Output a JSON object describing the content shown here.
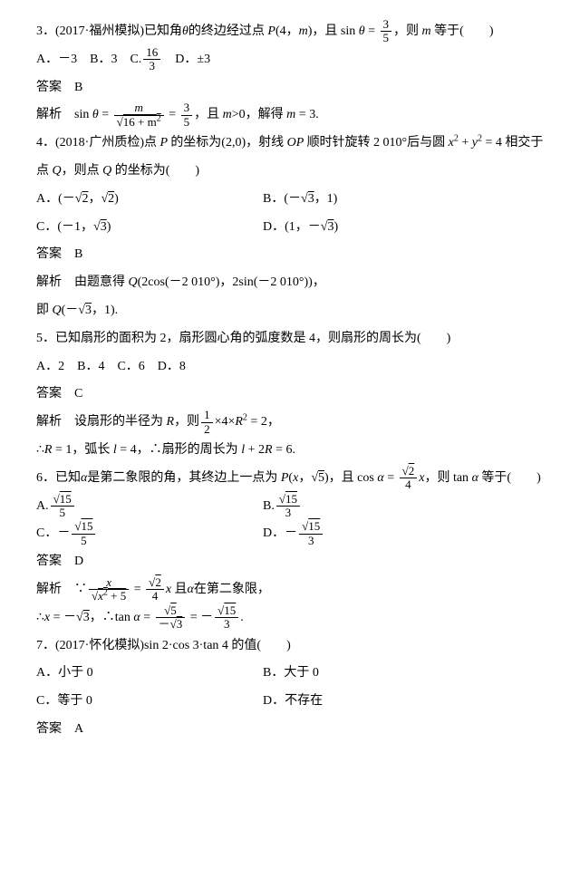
{
  "q3": {
    "stem_a": "3．(2017·福州模拟)已知角",
    "stem_b": "的终边经过点 ",
    "point": "P",
    "args": "(4，",
    "m": "m",
    "stem_c": ")，且 sin ",
    "eq": " = ",
    "f_num": "3",
    "f_den": "5",
    "stem_d": "，则 ",
    "stem_e": " 等于(　　)",
    "opts": "A．－3　B．3　C.",
    "c_num": "16",
    "c_den": "3",
    "optd": "　D．±3",
    "ans_label": "答案　B",
    "exp_a": "解析　sin ",
    "exp_eq": " = ",
    "exp_num": "m",
    "exp_den": "16 + m",
    "exp_b": " = ",
    "exp_c": "，且 ",
    "exp_d": ">0，解得 ",
    "exp_e": " = 3."
  },
  "q4": {
    "stem_a": "4．(2018·广州质检)点 ",
    "P": "P ",
    "stem_b": "的坐标为(2,0)，射线 ",
    "OP": "OP ",
    "stem_c": "顺时针旋转 2 010°后与圆 ",
    "eq": "x",
    "plus": " + ",
    "y": "y",
    "eq2": " = 4 相交于",
    "stem_d": "点 ",
    "Q": "Q",
    "stem_e": "，则点 ",
    "stem_f": " 的坐标为(　　)",
    "a": "A．(－",
    "a2": "2",
    "a3": "，",
    "a4": "2",
    "a5": ")",
    "b": "B．(－",
    "b2": "3",
    "b3": "，1)",
    "c": "C．(－1，",
    "c2": "3",
    "c3": ")",
    "d": "D．(1，－",
    "d2": "3",
    "d3": ")",
    "ans": "答案　B",
    "exp1": "解析　由题意得 ",
    "exp2": "(2cos(－2 010°)，2sin(－2 010°))，",
    "exp3": "即 ",
    "exp4": "(－",
    "exp5": "3",
    "exp6": "，1)."
  },
  "q5": {
    "stem": "5．已知扇形的面积为 2，扇形圆心角的弧度数是 4，则扇形的周长为(　　)",
    "opts": "A．2　B．4　C．6　D．8",
    "ans": "答案　C",
    "exp1": "解析　设扇形的半径为 ",
    "R": "R",
    "exp2": "，则",
    "half_n": "1",
    "half_d": "2",
    "exp3": "×4×",
    "exp4": " = 2，",
    "exp5": "∴",
    "exp6": " = 1，弧长 ",
    "l": "l",
    "exp7": " = 4，∴扇形的周长为 ",
    "exp8": " + 2",
    "exp9": " = 6."
  },
  "q6": {
    "stem_a": "6．已知",
    "alpha": "α",
    "stem_b": "是第二象限的角，其终边上一点为 ",
    "P": "P",
    "stem_c": "(",
    "x": "x",
    "stem_d": "，",
    "five": "5",
    "stem_e": ")，且 cos ",
    "eq": " = ",
    "f_num": "2",
    "f_den": "4",
    "stem_f": "，则 tan ",
    "stem_g": " 等于(　　)",
    "a": "A.",
    "ab_num": "15",
    "a_den": "5",
    "b": "B.",
    "b_den": "3",
    "c": "C．－",
    "c_den": "5",
    "d": "D．－",
    "d_den": "3",
    "ans": "答案　D",
    "exp1": "解析　∵",
    "exp_num": "x",
    "exp_den1": "x",
    "exp_den2": " + 5",
    "exp2": " = ",
    "exp3": " 且",
    "exp4": "在第二象限，",
    "exp5": "∴",
    "exp6": " = －",
    "three": "3",
    "exp7": "，∴tan ",
    "exp8": " = ",
    "t_num": "5",
    "t_den": "3",
    "exp9": " = －",
    "r_num": "15",
    "r_den": "3",
    "exp10": "."
  },
  "q7": {
    "stem": "7．(2017·怀化模拟)sin 2·cos 3·tan 4 的值(　　)",
    "a": "A．小于 0",
    "b": "B．大于 0",
    "c": "C．等于 0",
    "d": "D．不存在",
    "ans": "答案　A"
  }
}
